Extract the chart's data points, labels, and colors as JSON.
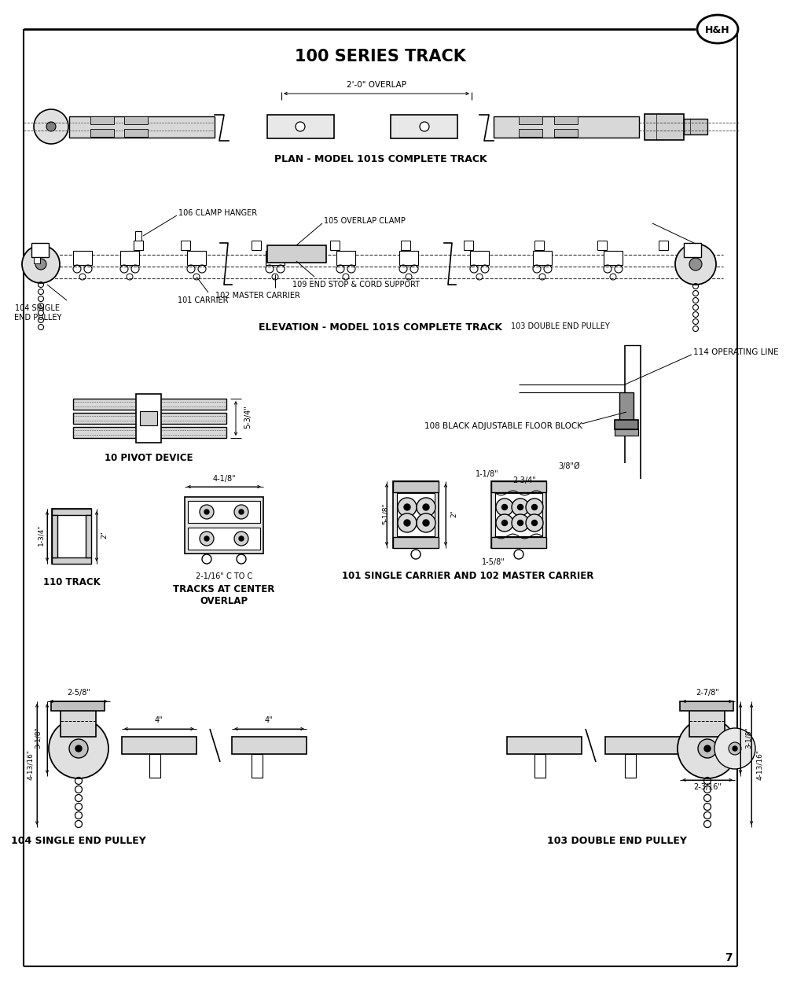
{
  "title": "100 SERIES TRACK",
  "page_number": "7",
  "background_color": "#ffffff",
  "border_color": "#000000",
  "sections": {
    "plan_title": "PLAN - MODEL 101S COMPLETE TRACK",
    "elevation_title": "ELEVATION - MODEL 101S COMPLETE TRACK",
    "pivot_label": "10 PIVOT DEVICE",
    "track_label": "110 TRACK",
    "overlap_label": "TRACKS AT CENTER\nOVERLAP",
    "carrier_label": "101 SINGLE CARRIER AND 102 MASTER CARRIER",
    "single_end_label": "104 SINGLE END PULLEY",
    "double_end_label": "103 DOUBLE END PULLEY"
  },
  "annotations": {
    "overlap_dim": "2'-0\" OVERLAP",
    "clamp_hanger": "106 CLAMP HANGER",
    "single_end_pulley": "104 SINGLE\nEND PULLEY",
    "carrier": "101 CARRIER",
    "overlap_clamp": "105 OVERLAP CLAMP",
    "end_stop": "109 END STOP & CORD SUPPORT",
    "master_carrier": "102 MASTER CARRIER",
    "double_end_pulley": "103 DOUBLE END PULLEY",
    "operating_line": "114 OPERATING LINE",
    "floor_block": "108 BLACK ADJUSTABLE FLOOR BLOCK",
    "dim_5_3_4": "5-3/4\"",
    "dim_4_1_8": "4-1/8\"",
    "dim_2_1_16": "2-1/16\" C TO C",
    "dim_1_3_4": "1-3/4\"",
    "dim_2_inch": "2\"",
    "dim_5_1_8": "5-1/8\"",
    "dim_2_inch_b": "2\"",
    "dim_3_8": "3/8\"Ø",
    "dim_1_1_8": "1-1/8\"",
    "dim_2_3_4": "2-3/4\"",
    "dim_1_5_8": "1-5/8\"",
    "dim_2_5_8": "2-5/8\"",
    "dim_3_1_8": "3-1/8\"",
    "dim_4_13_16": "4-13/16\"",
    "dim_4_inch_a": "4\"",
    "dim_4_inch_b": "4\"",
    "dim_2_7_8": "2-7/8\"",
    "dim_3_1_8_b": "3-1/8\"",
    "dim_4_13_16_b": "4-13/16\"",
    "dim_2_3_16": "2-3/16\""
  }
}
